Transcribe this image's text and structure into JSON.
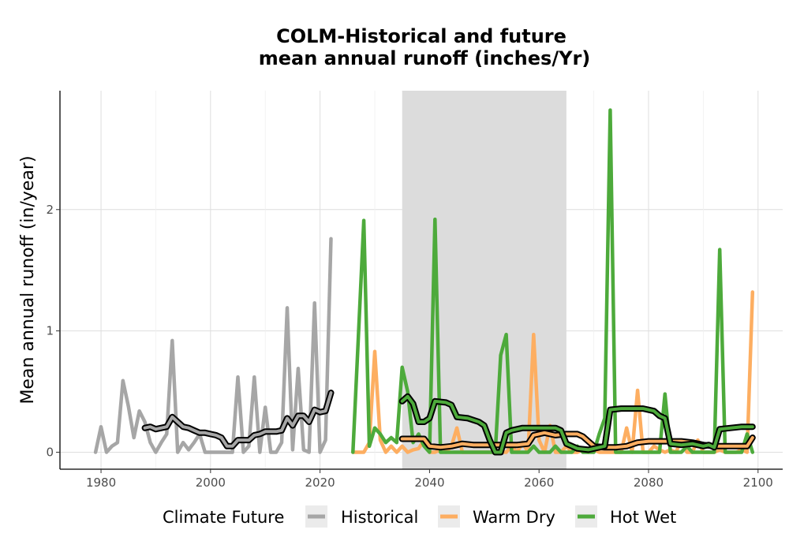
{
  "chart_data": {
    "type": "line",
    "title": [
      "COLM-Historical and future",
      "mean annual runoff (inches/Yr)"
    ],
    "ylabel": "Mean annual runoff (in/year)",
    "xlabel": "",
    "xlim": [
      1972.5,
      2104.5
    ],
    "ylim": [
      -0.14,
      2.98
    ],
    "x_ticks": [
      1980,
      2000,
      2020,
      2040,
      2060,
      2080,
      2100
    ],
    "y_ticks": [
      0,
      1,
      2
    ],
    "grid": true,
    "shaded_period": [
      2035,
      2065
    ],
    "legend": {
      "title": "Climate Future",
      "position": "bottom",
      "entries": [
        {
          "label": "Historical",
          "color": "#a6a6a6"
        },
        {
          "label": "Warm Dry",
          "color": "#fdae61"
        },
        {
          "label": "Hot Wet",
          "color": "#4daa3b"
        }
      ]
    },
    "series": [
      {
        "name": "Historical",
        "color": "#a6a6a6",
        "x": [
          1979,
          1980,
          1981,
          1982,
          1983,
          1984,
          1985,
          1986,
          1987,
          1988,
          1989,
          1990,
          1991,
          1992,
          1993,
          1994,
          1995,
          1996,
          1997,
          1998,
          1999,
          2000,
          2001,
          2002,
          2003,
          2004,
          2005,
          2006,
          2007,
          2008,
          2009,
          2010,
          2011,
          2012,
          2013,
          2014,
          2015,
          2016,
          2017,
          2018,
          2019,
          2020,
          2021,
          2022
        ],
        "y": [
          0.0,
          0.21,
          0.0,
          0.05,
          0.08,
          0.59,
          0.38,
          0.12,
          0.34,
          0.25,
          0.08,
          0.0,
          0.08,
          0.15,
          0.92,
          0.0,
          0.08,
          0.02,
          0.08,
          0.15,
          0.0,
          0.0,
          0.0,
          0.0,
          0.0,
          0.0,
          0.62,
          0.0,
          0.05,
          0.62,
          0.0,
          0.37,
          0.0,
          0.0,
          0.08,
          1.19,
          0.02,
          0.69,
          0.02,
          0.0,
          1.23,
          0.0,
          0.1,
          1.76
        ]
      },
      {
        "name": "Warm Dry",
        "color": "#fdae61",
        "x": [
          2026,
          2027,
          2028,
          2029,
          2030,
          2031,
          2032,
          2033,
          2034,
          2035,
          2036,
          2037,
          2038,
          2039,
          2040,
          2041,
          2042,
          2043,
          2044,
          2045,
          2046,
          2047,
          2048,
          2049,
          2050,
          2051,
          2052,
          2053,
          2054,
          2055,
          2056,
          2057,
          2058,
          2059,
          2060,
          2061,
          2062,
          2063,
          2064,
          2065,
          2066,
          2067,
          2068,
          2069,
          2070,
          2071,
          2072,
          2073,
          2074,
          2075,
          2076,
          2077,
          2078,
          2079,
          2080,
          2081,
          2082,
          2083,
          2084,
          2085,
          2086,
          2087,
          2088,
          2089,
          2090,
          2091,
          2092,
          2093,
          2094,
          2095,
          2096,
          2097,
          2098,
          2099
        ],
        "y": [
          0.0,
          0.0,
          0.0,
          0.08,
          0.83,
          0.1,
          0.0,
          0.05,
          0.0,
          0.05,
          0.0,
          0.02,
          0.03,
          0.1,
          0.0,
          0.0,
          0.02,
          0.0,
          0.05,
          0.2,
          0.0,
          0.0,
          0.0,
          0.0,
          0.0,
          0.0,
          0.0,
          0.0,
          0.0,
          0.05,
          0.0,
          0.08,
          0.0,
          0.97,
          0.1,
          0.0,
          0.22,
          0.0,
          0.0,
          0.05,
          0.0,
          0.0,
          0.02,
          0.0,
          0.02,
          0.0,
          0.0,
          0.0,
          0.0,
          0.0,
          0.2,
          0.0,
          0.51,
          0.0,
          0.0,
          0.05,
          0.02,
          0.0,
          0.02,
          0.0,
          0.1,
          0.0,
          0.0,
          0.1,
          0.0,
          0.0,
          0.0,
          0.02,
          0.0,
          0.0,
          0.0,
          0.02,
          0.0,
          1.32
        ]
      },
      {
        "name": "Hot Wet",
        "color": "#4daa3b",
        "x": [
          2026,
          2027,
          2028,
          2029,
          2030,
          2031,
          2032,
          2033,
          2034,
          2035,
          2036,
          2037,
          2038,
          2039,
          2040,
          2041,
          2042,
          2043,
          2044,
          2045,
          2046,
          2047,
          2048,
          2049,
          2050,
          2051,
          2052,
          2053,
          2054,
          2055,
          2056,
          2057,
          2058,
          2059,
          2060,
          2061,
          2062,
          2063,
          2064,
          2065,
          2066,
          2067,
          2068,
          2069,
          2070,
          2071,
          2072,
          2073,
          2074,
          2075,
          2076,
          2077,
          2078,
          2079,
          2080,
          2081,
          2082,
          2083,
          2084,
          2085,
          2086,
          2087,
          2088,
          2089,
          2090,
          2091,
          2092,
          2093,
          2094,
          2095,
          2096,
          2097,
          2098,
          2099
        ],
        "y": [
          0.0,
          0.95,
          1.91,
          0.05,
          0.2,
          0.15,
          0.08,
          0.12,
          0.08,
          0.7,
          0.5,
          0.08,
          0.15,
          0.05,
          0.0,
          1.92,
          0.0,
          0.0,
          0.0,
          0.0,
          0.0,
          0.0,
          0.0,
          0.0,
          0.0,
          0.0,
          0.0,
          0.8,
          0.97,
          0.0,
          0.0,
          0.0,
          0.0,
          0.05,
          0.0,
          0.0,
          0.0,
          0.05,
          0.0,
          0.0,
          0.0,
          0.05,
          0.0,
          0.0,
          0.0,
          0.15,
          0.28,
          2.82,
          0.0,
          0.0,
          0.0,
          0.0,
          0.0,
          0.0,
          0.0,
          0.0,
          0.0,
          0.48,
          0.0,
          0.0,
          0.0,
          0.05,
          0.0,
          0.0,
          0.0,
          0.0,
          0.0,
          1.67,
          0.0,
          0.0,
          0.0,
          0.0,
          0.15,
          0.0
        ]
      }
    ],
    "rolling_means": [
      {
        "series": "Historical",
        "x": [
          1988,
          1989,
          1990,
          1991,
          1992,
          1993,
          1994,
          1995,
          1996,
          1997,
          1998,
          1999,
          2000,
          2001,
          2002,
          2003,
          2004,
          2005,
          2006,
          2007,
          2008,
          2009,
          2010,
          2011,
          2012,
          2013,
          2014,
          2015,
          2016,
          2017,
          2018,
          2019,
          2020,
          2021,
          2022
        ],
        "y": [
          0.2,
          0.21,
          0.19,
          0.2,
          0.21,
          0.29,
          0.25,
          0.21,
          0.2,
          0.18,
          0.16,
          0.16,
          0.15,
          0.14,
          0.12,
          0.05,
          0.05,
          0.1,
          0.1,
          0.1,
          0.14,
          0.15,
          0.17,
          0.17,
          0.17,
          0.18,
          0.28,
          0.22,
          0.3,
          0.3,
          0.25,
          0.35,
          0.33,
          0.34,
          0.49
        ]
      },
      {
        "series": "Warm Dry",
        "x": [
          2035,
          2037,
          2039,
          2040,
          2042,
          2044,
          2046,
          2048,
          2050,
          2052,
          2054,
          2056,
          2058,
          2059,
          2061,
          2063,
          2065,
          2067,
          2068,
          2070,
          2072,
          2074,
          2076,
          2078,
          2080,
          2082,
          2084,
          2086,
          2088,
          2090,
          2092,
          2094,
          2096,
          2098,
          2099
        ],
        "y": [
          0.11,
          0.11,
          0.11,
          0.05,
          0.04,
          0.05,
          0.07,
          0.06,
          0.06,
          0.06,
          0.06,
          0.06,
          0.07,
          0.14,
          0.16,
          0.14,
          0.15,
          0.15,
          0.13,
          0.05,
          0.04,
          0.04,
          0.05,
          0.08,
          0.09,
          0.09,
          0.09,
          0.09,
          0.08,
          0.06,
          0.05,
          0.05,
          0.05,
          0.05,
          0.12
        ]
      },
      {
        "series": "Hot Wet",
        "x": [
          2035,
          2036,
          2037,
          2038,
          2039,
          2040,
          2041,
          2043,
          2044,
          2045,
          2047,
          2049,
          2050,
          2051,
          2052,
          2053,
          2054,
          2055,
          2057,
          2059,
          2061,
          2063,
          2064,
          2065,
          2067,
          2069,
          2071,
          2072,
          2073,
          2075,
          2077,
          2079,
          2081,
          2082,
          2083,
          2084,
          2086,
          2088,
          2090,
          2091,
          2092,
          2093,
          2095,
          2097,
          2099
        ],
        "y": [
          0.42,
          0.46,
          0.4,
          0.25,
          0.25,
          0.28,
          0.42,
          0.41,
          0.39,
          0.29,
          0.28,
          0.25,
          0.22,
          0.1,
          0.0,
          0.0,
          0.16,
          0.18,
          0.2,
          0.2,
          0.2,
          0.2,
          0.18,
          0.07,
          0.03,
          0.02,
          0.04,
          0.05,
          0.35,
          0.36,
          0.36,
          0.36,
          0.34,
          0.3,
          0.28,
          0.07,
          0.06,
          0.07,
          0.05,
          0.06,
          0.04,
          0.19,
          0.2,
          0.21,
          0.21
        ]
      }
    ]
  }
}
